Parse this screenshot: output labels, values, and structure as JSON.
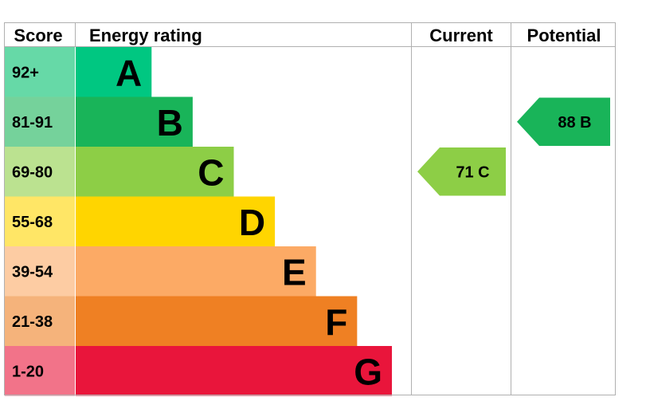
{
  "chart_data": {
    "type": "table",
    "headers": {
      "score": "Score",
      "rating": "Energy rating",
      "current": "Current",
      "potential": "Potential"
    },
    "bands": [
      {
        "score": "92+",
        "letter": "A",
        "color": "#00c781",
        "score_bg": "#66d9a7",
        "relative_length": 0.24
      },
      {
        "score": "81-91",
        "letter": "B",
        "color": "#19b459",
        "score_bg": "#75d29b",
        "relative_length": 0.37
      },
      {
        "score": "69-80",
        "letter": "C",
        "color": "#8dce46",
        "score_bg": "#bbe290",
        "relative_length": 0.5
      },
      {
        "score": "55-68",
        "letter": "D",
        "color": "#ffd500",
        "score_bg": "#ffe666",
        "relative_length": 0.63
      },
      {
        "score": "39-54",
        "letter": "E",
        "color": "#fcaa65",
        "score_bg": "#fdcca3",
        "relative_length": 0.76
      },
      {
        "score": "21-38",
        "letter": "F",
        "color": "#ef8023",
        "score_bg": "#f5b37b",
        "relative_length": 0.89
      },
      {
        "score": "1-20",
        "letter": "G",
        "color": "#e9153b",
        "score_bg": "#f27389",
        "relative_length": 1.0
      }
    ],
    "current": {
      "value": 71,
      "letter": "C",
      "label": "71  C",
      "color": "#8dce46"
    },
    "potential": {
      "value": 88,
      "letter": "B",
      "label": "88  B",
      "color": "#19b459"
    }
  }
}
